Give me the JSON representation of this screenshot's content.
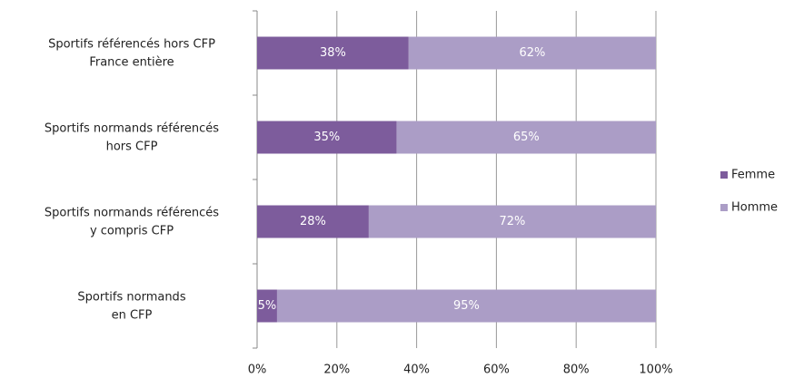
{
  "chart_data": {
    "type": "stacked-barh",
    "categories": [
      "Sportifs référencés hors CFP\nFrance entière",
      "Sportifs normands référencés\nhors CFP",
      "Sportifs normands référencés\ny compris CFP",
      "Sportifs normands\nen CFP"
    ],
    "series": [
      {
        "name": "Femme",
        "color": "#7d5c9c",
        "values": [
          38,
          35,
          28,
          5
        ],
        "value_labels": [
          "38%",
          "35%",
          "28%",
          "5%"
        ]
      },
      {
        "name": "Homme",
        "color": "#ab9dc6",
        "values": [
          62,
          65,
          72,
          95
        ],
        "value_labels": [
          "62%",
          "65%",
          "72%",
          "95%"
        ]
      }
    ],
    "xlim": [
      0,
      100
    ],
    "xticks": [
      {
        "value": 0,
        "label": "0%"
      },
      {
        "value": 20,
        "label": "20%"
      },
      {
        "value": 40,
        "label": "40%"
      },
      {
        "value": 60,
        "label": "60%"
      },
      {
        "value": 80,
        "label": "80%"
      },
      {
        "value": 100,
        "label": "100%"
      }
    ],
    "grid": true,
    "legend": "right"
  }
}
